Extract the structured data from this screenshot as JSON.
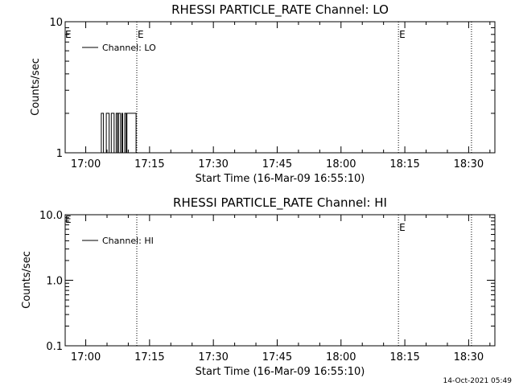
{
  "footer_timestamp": "14-Oct-2021 05:49",
  "chart_data": [
    {
      "type": "line",
      "title": "RHESSI PARTICLE_RATE Channel: LO",
      "xlabel": "Start Time (16-Mar-09 16:55:10)",
      "ylabel": "Counts/sec",
      "y_scale": "log",
      "ylim": [
        1,
        10
      ],
      "y_ticks": [
        "1",
        "10"
      ],
      "xlim": [
        "16:55:10",
        "18:36:10"
      ],
      "x_ticks": [
        "17:00",
        "17:15",
        "17:30",
        "17:45",
        "18:00",
        "18:15",
        "18:30"
      ],
      "legend": "Channel: LO",
      "legend_position": "top-left",
      "markers": [
        {
          "time": "17:12:00",
          "style": "dotted",
          "flag": "E"
        },
        {
          "time": "18:13:30",
          "style": "dotted",
          "flag": "E"
        },
        {
          "time": "18:30:40",
          "style": "dotted",
          "flag": ""
        }
      ],
      "left_flag": "E",
      "series": [
        {
          "x": [
            "17:03:10",
            "17:03:40",
            "17:04:10",
            "17:04:50",
            "17:05:30",
            "17:06:00",
            "17:06:40",
            "17:07:10",
            "17:07:30",
            "17:07:40",
            "17:08:10",
            "17:08:30",
            "17:08:40",
            "17:09:10",
            "17:09:30",
            "17:09:40",
            "17:11:30",
            "17:11:50",
            "17:12:10"
          ],
          "y": [
            1,
            2,
            1,
            2,
            1,
            2,
            1,
            2,
            1,
            2,
            1,
            2,
            1,
            2,
            1,
            2,
            2,
            1,
            1
          ]
        }
      ]
    },
    {
      "type": "line",
      "title": "RHESSI PARTICLE_RATE Channel: HI",
      "xlabel": "Start Time (16-Mar-09 16:55:10)",
      "ylabel": "Counts/sec",
      "y_scale": "log",
      "ylim": [
        0.1,
        10
      ],
      "y_ticks": [
        "0.1",
        "1.0",
        "10.0"
      ],
      "xlim": [
        "16:55:10",
        "18:36:10"
      ],
      "x_ticks": [
        "17:00",
        "17:15",
        "17:30",
        "17:45",
        "18:00",
        "18:15",
        "18:30"
      ],
      "legend": "Channel: HI",
      "legend_position": "top-left",
      "markers": [
        {
          "time": "17:12:00",
          "style": "dotted",
          "flag": ""
        },
        {
          "time": "18:13:30",
          "style": "dotted",
          "flag": "E"
        },
        {
          "time": "18:30:40",
          "style": "dotted",
          "flag": ""
        }
      ],
      "left_flag": "E",
      "series": []
    }
  ]
}
